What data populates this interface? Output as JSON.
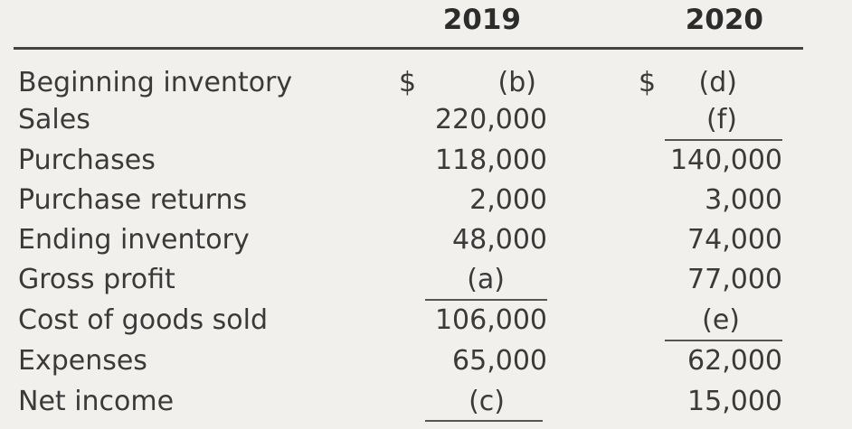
{
  "headers": {
    "year_2019": "2019",
    "year_2020": "2020"
  },
  "currency_symbol": "$",
  "rows": [
    {
      "label": "Beginning inventory",
      "y2019": "(b)",
      "y2020": "(d)"
    },
    {
      "label": "Sales",
      "y2019": "220,000",
      "y2020": "(f)"
    },
    {
      "label": "Purchases",
      "y2019": "118,000",
      "y2020": "140,000"
    },
    {
      "label": "Purchase returns",
      "y2019": "2,000",
      "y2020": "3,000"
    },
    {
      "label": "Ending inventory",
      "y2019": "48,000",
      "y2020": "74,000"
    },
    {
      "label": "Gross profit",
      "y2019": "(a)",
      "y2020": "77,000"
    },
    {
      "label": "Cost of goods sold",
      "y2019": "106,000",
      "y2020": "(e)"
    },
    {
      "label": "Expenses",
      "y2019": "65,000",
      "y2020": "62,000"
    },
    {
      "label": "Net income",
      "y2019": "(c)",
      "y2020": "15,000"
    }
  ]
}
